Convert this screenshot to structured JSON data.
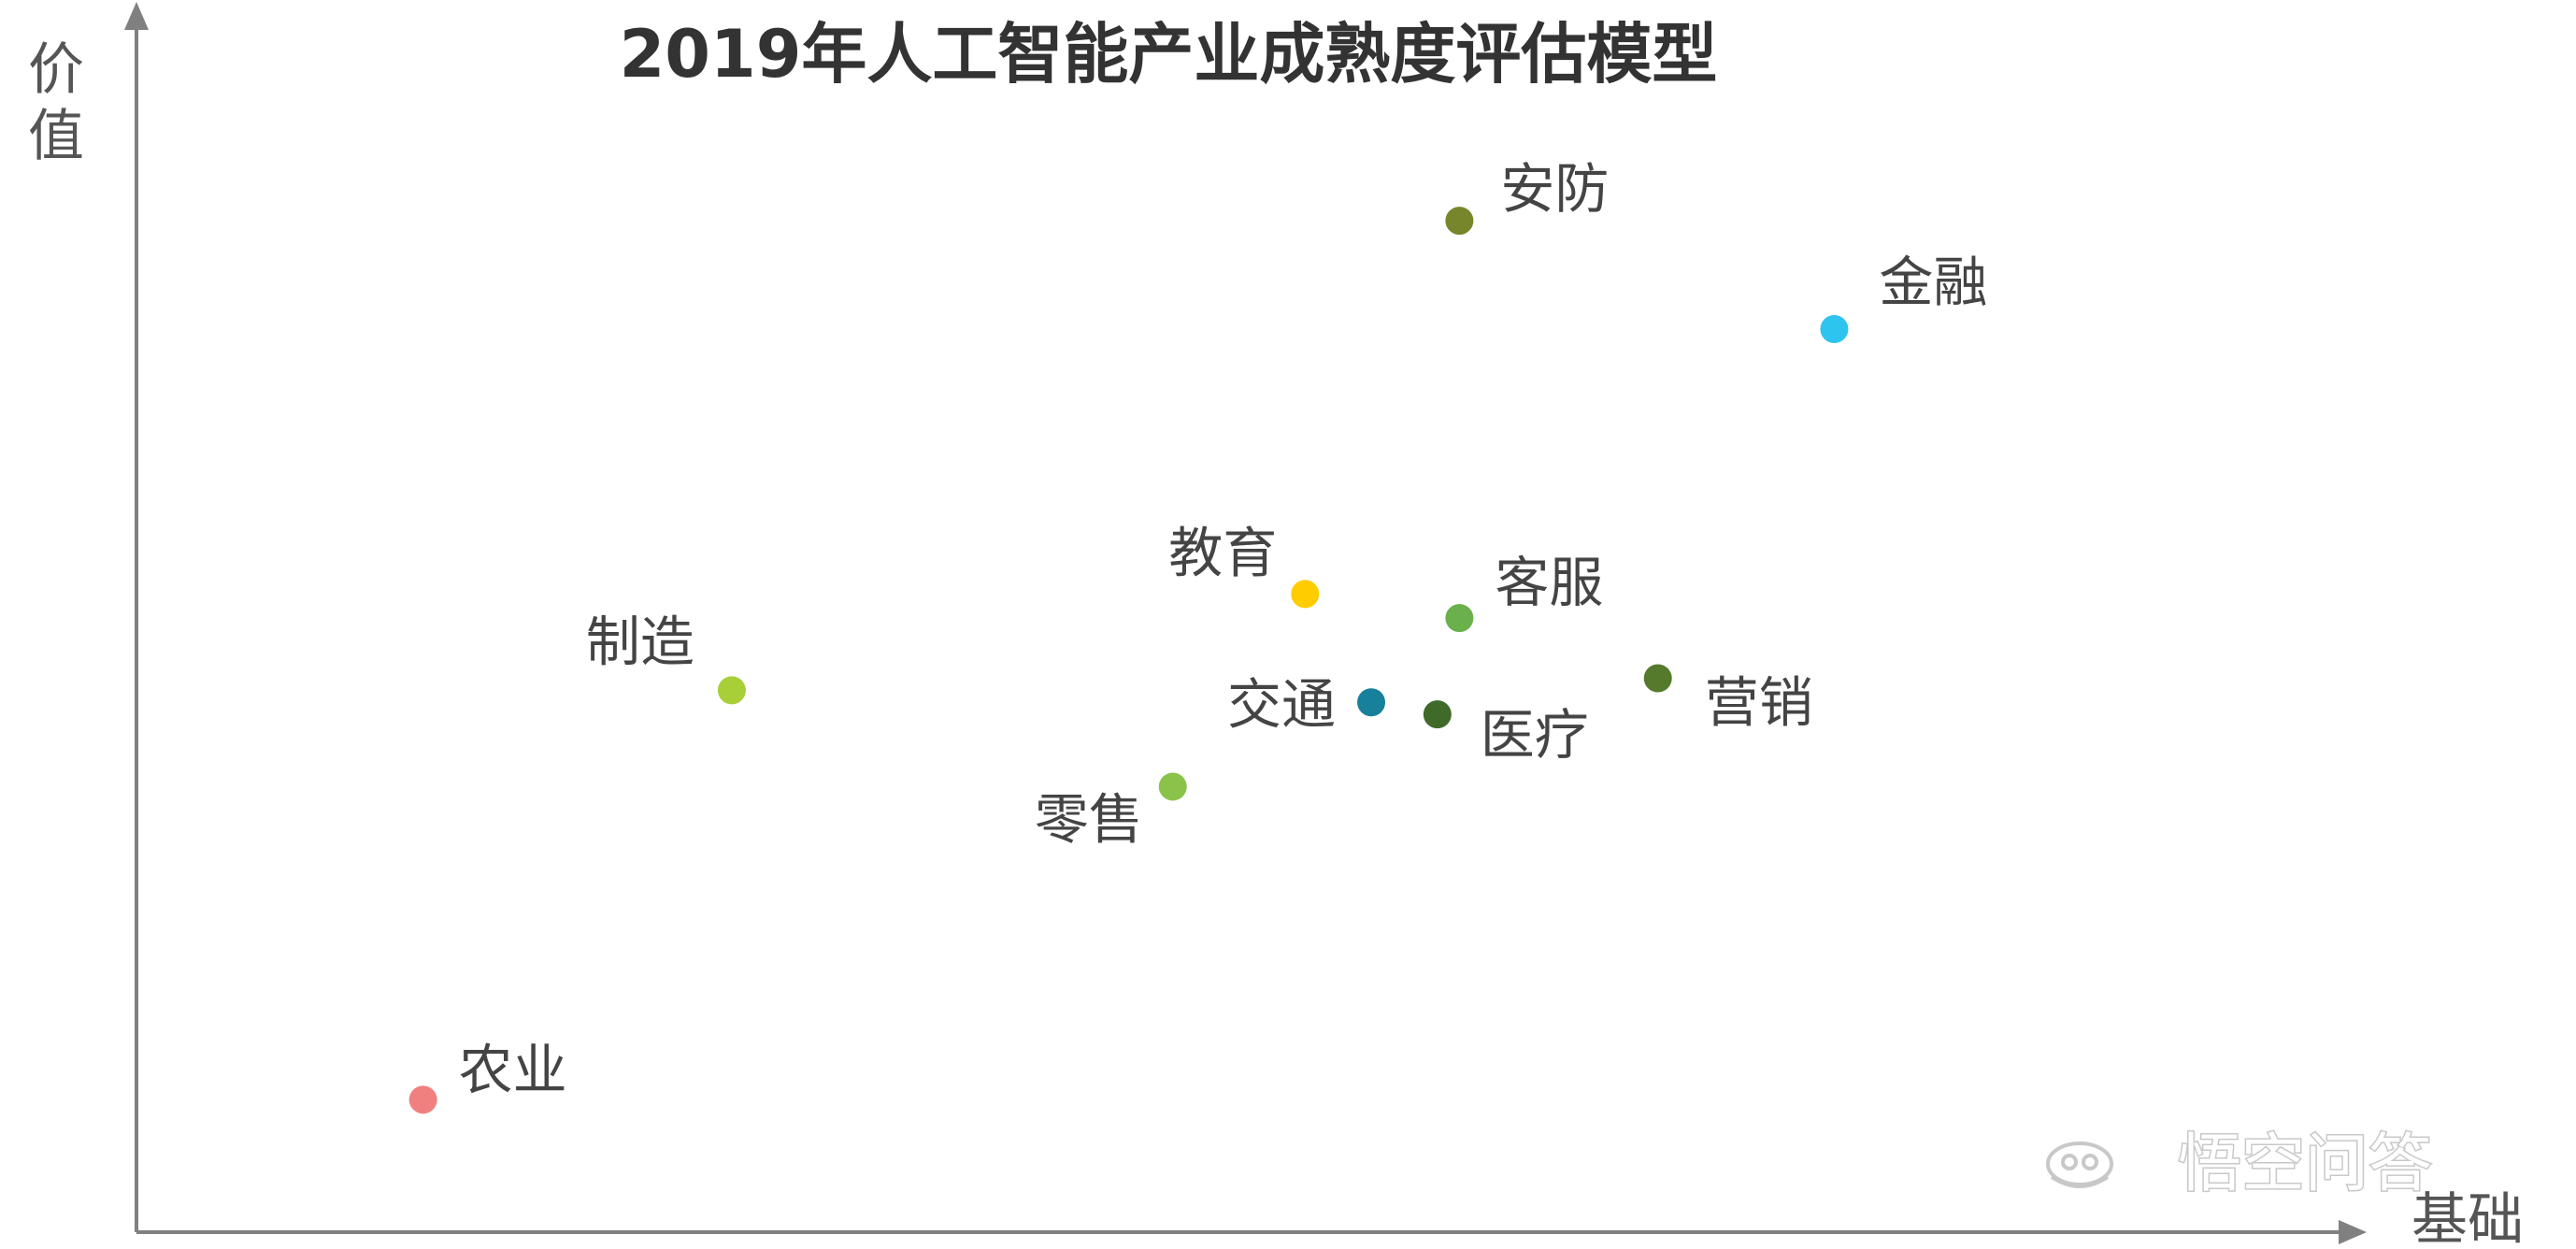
{
  "chart_data": {
    "type": "scatter",
    "title": "2019年人工智能产业成熟度评估模型",
    "xlabel": "基础",
    "ylabel": "价值",
    "xlim": [
      0,
      100
    ],
    "ylim": [
      0,
      100
    ],
    "grid": false,
    "legend": "none",
    "points": [
      {
        "label": "安防",
        "x": 60,
        "y": 84,
        "color": "#77862a"
      },
      {
        "label": "金融",
        "x": 77,
        "y": 75,
        "color": "#2ec4f0"
      },
      {
        "label": "教育",
        "x": 53,
        "y": 53,
        "color": "#ffcc00"
      },
      {
        "label": "客服",
        "x": 60,
        "y": 51,
        "color": "#6ab04c"
      },
      {
        "label": "制造",
        "x": 27,
        "y": 45,
        "color": "#a8cf38"
      },
      {
        "label": "交通",
        "x": 56,
        "y": 44,
        "color": "#17809b"
      },
      {
        "label": "医疗",
        "x": 59,
        "y": 43,
        "color": "#3f6a2a"
      },
      {
        "label": "营销",
        "x": 69,
        "y": 46,
        "color": "#557a2c"
      },
      {
        "label": "零售",
        "x": 47,
        "y": 37,
        "color": "#8bc34a"
      },
      {
        "label": "农业",
        "x": 13,
        "y": 11,
        "color": "#f08080"
      }
    ]
  },
  "colors": {
    "axis": "#808080",
    "title": "#333333",
    "label": "#444444"
  },
  "watermark": {
    "text": "悟空问答",
    "icon": "wukong-logo-icon"
  }
}
